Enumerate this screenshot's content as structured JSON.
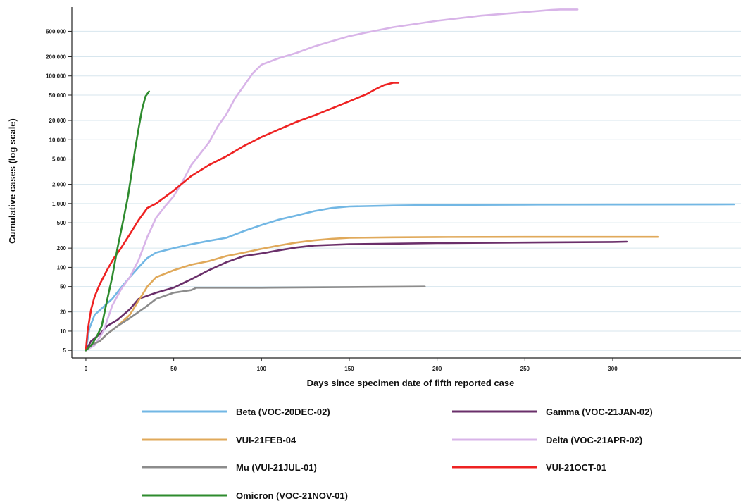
{
  "chart_data": {
    "type": "line",
    "xlabel": "Days since specimen date of fifth reported case",
    "ylabel": "Cumulative cases (log scale)",
    "xlim": [
      -8,
      373
    ],
    "ylim": [
      3.8,
      1200000
    ],
    "y_scale": "log",
    "grid": "horizontal",
    "legend_position": "bottom",
    "x_ticks": [
      0,
      50,
      100,
      150,
      200,
      250,
      300
    ],
    "x_tick_labels": [
      "0",
      "50",
      "100",
      "150",
      "200",
      "250",
      "300"
    ],
    "y_ticks": [
      5,
      10,
      20,
      50,
      100,
      200,
      500,
      1000,
      2000,
      5000,
      10000,
      20000,
      50000,
      100000,
      200000,
      500000
    ],
    "y_tick_labels": [
      "5",
      "10",
      "20",
      "50",
      "100",
      "200",
      "500",
      "1,000",
      "2,000",
      "5,000",
      "10,000",
      "20,000",
      "50,000",
      "100,000",
      "200,000",
      "500,000"
    ],
    "series": [
      {
        "name": "Beta (VOC-20DEC-02)",
        "color": "#72b7e4",
        "x": [
          0,
          2,
          5,
          10,
          15,
          20,
          25,
          30,
          35,
          40,
          50,
          60,
          70,
          80,
          90,
          100,
          110,
          120,
          130,
          140,
          150,
          175,
          200,
          250,
          300,
          369
        ],
        "y": [
          5,
          11,
          18,
          24,
          32,
          48,
          70,
          100,
          140,
          170,
          200,
          230,
          260,
          290,
          370,
          460,
          560,
          650,
          760,
          850,
          900,
          930,
          950,
          960,
          965,
          970
        ]
      },
      {
        "name": "Gamma (VOC-21JAN-02)",
        "color": "#6a2f6a",
        "x": [
          0,
          3,
          8,
          12,
          18,
          25,
          30,
          40,
          50,
          60,
          70,
          80,
          90,
          100,
          110,
          120,
          130,
          140,
          150,
          175,
          200,
          250,
          300,
          308
        ],
        "y": [
          5,
          7,
          9,
          12,
          15,
          22,
          32,
          40,
          48,
          65,
          90,
          120,
          150,
          165,
          185,
          205,
          220,
          225,
          230,
          235,
          240,
          245,
          250,
          252
        ]
      },
      {
        "name": "VUI-21FEB-04",
        "color": "#e0a95a",
        "x": [
          0,
          3,
          8,
          12,
          18,
          25,
          30,
          35,
          40,
          50,
          60,
          70,
          80,
          90,
          100,
          110,
          120,
          130,
          140,
          150,
          175,
          200,
          250,
          300,
          326
        ],
        "y": [
          5,
          6,
          7,
          9,
          12,
          18,
          30,
          50,
          70,
          90,
          110,
          125,
          150,
          170,
          195,
          220,
          245,
          265,
          280,
          290,
          295,
          298,
          300,
          300,
          300
        ]
      },
      {
        "name": "Delta (VOC-21APR-02)",
        "color": "#d8b4e8",
        "x": [
          0,
          5,
          10,
          15,
          20,
          25,
          30,
          35,
          40,
          45,
          50,
          55,
          60,
          65,
          70,
          75,
          80,
          85,
          90,
          95,
          100,
          110,
          120,
          130,
          140,
          150,
          160,
          175,
          200,
          225,
          250,
          265,
          270,
          280
        ],
        "y": [
          5,
          6,
          10,
          25,
          45,
          70,
          130,
          300,
          600,
          900,
          1300,
          2200,
          4000,
          6000,
          9000,
          16000,
          25000,
          45000,
          70000,
          110000,
          150000,
          190000,
          230000,
          290000,
          350000,
          420000,
          480000,
          580000,
          730000,
          880000,
          1000000,
          1080000,
          1100000,
          1100000
        ]
      },
      {
        "name": "Mu (VUI-21JUL-01)",
        "color": "#8c8c8c",
        "x": [
          0,
          3,
          8,
          12,
          18,
          25,
          30,
          35,
          40,
          50,
          55,
          60,
          63,
          70,
          100,
          150,
          193
        ],
        "y": [
          5,
          6,
          7,
          9,
          12,
          16,
          20,
          25,
          32,
          40,
          42,
          44,
          48,
          48,
          48,
          49,
          50
        ]
      },
      {
        "name": "VUI-21OCT-01",
        "color": "#ee2222",
        "x": [
          0,
          1,
          2,
          3,
          5,
          8,
          12,
          16,
          20,
          25,
          30,
          35,
          40,
          50,
          60,
          70,
          80,
          90,
          100,
          110,
          120,
          130,
          140,
          150,
          160,
          165,
          170,
          175,
          178
        ],
        "y": [
          5,
          10,
          15,
          22,
          35,
          55,
          90,
          140,
          200,
          330,
          550,
          850,
          1000,
          1600,
          2700,
          4000,
          5500,
          8000,
          11000,
          14500,
          19000,
          24000,
          31000,
          40000,
          52000,
          62000,
          72000,
          78000,
          78000
        ]
      },
      {
        "name": "Omicron (VOC-21NOV-01)",
        "color": "#2e8b2e",
        "x": [
          0,
          3,
          6,
          9,
          12,
          15,
          18,
          21,
          24,
          26,
          28,
          30,
          32,
          34,
          36
        ],
        "y": [
          5,
          6,
          8,
          12,
          30,
          70,
          200,
          500,
          1300,
          3000,
          7000,
          15000,
          30000,
          48000,
          57000
        ]
      }
    ]
  }
}
